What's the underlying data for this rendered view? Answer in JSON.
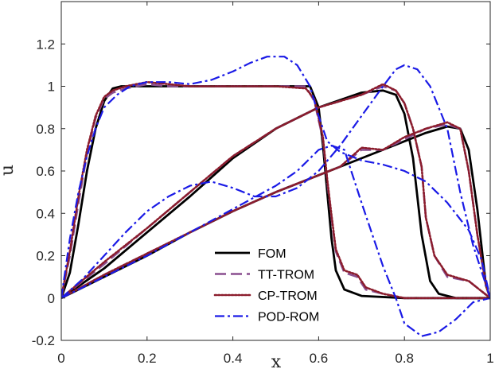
{
  "chart_data": {
    "type": "line",
    "xlabel": "x",
    "ylabel": "u",
    "xlim": [
      0,
      1
    ],
    "ylim": [
      -0.2,
      1.4
    ],
    "xticks": [
      "0",
      "0.2",
      "0.4",
      "0.6",
      "0.8",
      "1"
    ],
    "yticks": [
      "-0.2",
      "0",
      "0.2",
      "0.4",
      "0.6",
      "0.8",
      "1",
      "1.2"
    ],
    "grid": false,
    "legend_position": "bottom-center",
    "legend": [
      "FOM",
      "TT-TROM",
      "CP-TROM",
      "POD-ROM"
    ],
    "series": [
      {
        "name": "FOM",
        "color": "#000000",
        "dash": "solid",
        "curves": [
          [
            [
              0,
              0
            ],
            [
              0.02,
              0.12
            ],
            [
              0.04,
              0.35
            ],
            [
              0.06,
              0.6
            ],
            [
              0.08,
              0.8
            ],
            [
              0.1,
              0.93
            ],
            [
              0.12,
              0.99
            ],
            [
              0.14,
              1.0
            ],
            [
              0.3,
              1.0
            ],
            [
              0.58,
              1.0
            ],
            [
              0.6,
              0.9
            ],
            [
              0.61,
              0.72
            ],
            [
              0.62,
              0.5
            ],
            [
              0.63,
              0.28
            ],
            [
              0.64,
              0.13
            ],
            [
              0.66,
              0.04
            ],
            [
              0.7,
              0.01
            ],
            [
              0.8,
              0.0
            ],
            [
              1.0,
              0.0
            ]
          ],
          [
            [
              0,
              0
            ],
            [
              0.1,
              0.14
            ],
            [
              0.2,
              0.31
            ],
            [
              0.3,
              0.48
            ],
            [
              0.4,
              0.66
            ],
            [
              0.5,
              0.8
            ],
            [
              0.6,
              0.9
            ],
            [
              0.7,
              0.97
            ],
            [
              0.75,
              0.98
            ],
            [
              0.78,
              0.96
            ],
            [
              0.8,
              0.87
            ],
            [
              0.82,
              0.66
            ],
            [
              0.84,
              0.3
            ],
            [
              0.86,
              0.08
            ],
            [
              0.88,
              0.02
            ],
            [
              0.92,
              0.0
            ],
            [
              1.0,
              0.0
            ]
          ],
          [
            [
              0,
              0
            ],
            [
              0.1,
              0.1
            ],
            [
              0.2,
              0.2
            ],
            [
              0.3,
              0.31
            ],
            [
              0.4,
              0.41
            ],
            [
              0.5,
              0.5
            ],
            [
              0.6,
              0.58
            ],
            [
              0.7,
              0.66
            ],
            [
              0.8,
              0.74
            ],
            [
              0.85,
              0.78
            ],
            [
              0.9,
              0.81
            ],
            [
              0.93,
              0.8
            ],
            [
              0.95,
              0.7
            ],
            [
              0.97,
              0.42
            ],
            [
              0.99,
              0.06
            ],
            [
              1.0,
              0.0
            ]
          ]
        ]
      },
      {
        "name": "TT-TROM",
        "color": "#8a4f8f",
        "dash": "dashed",
        "curves": [
          [
            [
              0,
              0
            ],
            [
              0.02,
              0.2
            ],
            [
              0.04,
              0.45
            ],
            [
              0.06,
              0.68
            ],
            [
              0.08,
              0.85
            ],
            [
              0.1,
              0.94
            ],
            [
              0.12,
              0.97
            ],
            [
              0.15,
              0.99
            ],
            [
              0.2,
              1.01
            ],
            [
              0.25,
              1.0
            ],
            [
              0.3,
              1.0
            ],
            [
              0.4,
              1.0
            ],
            [
              0.5,
              1.0
            ],
            [
              0.57,
              1.0
            ],
            [
              0.59,
              0.93
            ],
            [
              0.61,
              0.75
            ],
            [
              0.62,
              0.55
            ],
            [
              0.63,
              0.38
            ],
            [
              0.64,
              0.22
            ],
            [
              0.66,
              0.12
            ],
            [
              0.69,
              0.1
            ],
            [
              0.71,
              0.04
            ],
            [
              0.75,
              0.02
            ],
            [
              0.8,
              0.0
            ],
            [
              1.0,
              0.0
            ]
          ],
          [
            [
              0,
              0
            ],
            [
              0.1,
              0.16
            ],
            [
              0.2,
              0.33
            ],
            [
              0.3,
              0.5
            ],
            [
              0.4,
              0.67
            ],
            [
              0.5,
              0.8
            ],
            [
              0.6,
              0.9
            ],
            [
              0.7,
              0.96
            ],
            [
              0.75,
              1.0
            ],
            [
              0.78,
              0.98
            ],
            [
              0.8,
              0.92
            ],
            [
              0.82,
              0.8
            ],
            [
              0.84,
              0.62
            ],
            [
              0.85,
              0.38
            ],
            [
              0.87,
              0.2
            ],
            [
              0.9,
              0.1
            ],
            [
              0.95,
              0.08
            ],
            [
              1.0,
              0.0
            ]
          ],
          [
            [
              0,
              0
            ],
            [
              0.1,
              0.11
            ],
            [
              0.2,
              0.21
            ],
            [
              0.3,
              0.31
            ],
            [
              0.4,
              0.41
            ],
            [
              0.5,
              0.5
            ],
            [
              0.6,
              0.58
            ],
            [
              0.65,
              0.62
            ],
            [
              0.7,
              0.7
            ],
            [
              0.75,
              0.7
            ],
            [
              0.8,
              0.75
            ],
            [
              0.85,
              0.8
            ],
            [
              0.9,
              0.82
            ],
            [
              0.93,
              0.8
            ],
            [
              0.95,
              0.6
            ],
            [
              0.97,
              0.3
            ],
            [
              0.99,
              0.06
            ],
            [
              1.0,
              0.0
            ]
          ]
        ]
      },
      {
        "name": "CP-TROM",
        "color": "#8b1c2c",
        "dash": "dotted",
        "curves": [
          [
            [
              0,
              0
            ],
            [
              0.02,
              0.22
            ],
            [
              0.04,
              0.48
            ],
            [
              0.06,
              0.7
            ],
            [
              0.08,
              0.86
            ],
            [
              0.1,
              0.95
            ],
            [
              0.12,
              0.98
            ],
            [
              0.15,
              1.0
            ],
            [
              0.2,
              1.02
            ],
            [
              0.25,
              1.01
            ],
            [
              0.3,
              1.0
            ],
            [
              0.4,
              1.0
            ],
            [
              0.5,
              1.0
            ],
            [
              0.57,
              0.99
            ],
            [
              0.59,
              0.94
            ],
            [
              0.61,
              0.76
            ],
            [
              0.62,
              0.56
            ],
            [
              0.63,
              0.39
            ],
            [
              0.64,
              0.23
            ],
            [
              0.66,
              0.13
            ],
            [
              0.69,
              0.11
            ],
            [
              0.71,
              0.05
            ],
            [
              0.75,
              0.02
            ],
            [
              0.8,
              0.0
            ],
            [
              1.0,
              0.0
            ]
          ],
          [
            [
              0,
              0
            ],
            [
              0.1,
              0.17
            ],
            [
              0.2,
              0.33
            ],
            [
              0.3,
              0.5
            ],
            [
              0.4,
              0.67
            ],
            [
              0.5,
              0.8
            ],
            [
              0.6,
              0.9
            ],
            [
              0.7,
              0.96
            ],
            [
              0.75,
              1.01
            ],
            [
              0.78,
              0.98
            ],
            [
              0.8,
              0.92
            ],
            [
              0.82,
              0.8
            ],
            [
              0.84,
              0.62
            ],
            [
              0.85,
              0.38
            ],
            [
              0.87,
              0.2
            ],
            [
              0.9,
              0.11
            ],
            [
              0.95,
              0.08
            ],
            [
              1.0,
              0.0
            ]
          ],
          [
            [
              0,
              0
            ],
            [
              0.1,
              0.11
            ],
            [
              0.2,
              0.21
            ],
            [
              0.3,
              0.31
            ],
            [
              0.4,
              0.41
            ],
            [
              0.5,
              0.5
            ],
            [
              0.6,
              0.58
            ],
            [
              0.65,
              0.62
            ],
            [
              0.7,
              0.71
            ],
            [
              0.75,
              0.7
            ],
            [
              0.8,
              0.76
            ],
            [
              0.85,
              0.8
            ],
            [
              0.9,
              0.83
            ],
            [
              0.93,
              0.8
            ],
            [
              0.95,
              0.6
            ],
            [
              0.97,
              0.3
            ],
            [
              0.99,
              0.06
            ],
            [
              1.0,
              0.0
            ]
          ]
        ]
      },
      {
        "name": "POD-ROM",
        "color": "#1a1ae6",
        "dash": "dashdot",
        "curves": [
          [
            [
              0,
              0
            ],
            [
              0.02,
              0.28
            ],
            [
              0.04,
              0.5
            ],
            [
              0.06,
              0.67
            ],
            [
              0.08,
              0.8
            ],
            [
              0.1,
              0.9
            ],
            [
              0.13,
              0.96
            ],
            [
              0.16,
              1.0
            ],
            [
              0.2,
              1.02
            ],
            [
              0.25,
              1.02
            ],
            [
              0.3,
              1.01
            ],
            [
              0.35,
              1.03
            ],
            [
              0.4,
              1.07
            ],
            [
              0.44,
              1.11
            ],
            [
              0.48,
              1.14
            ],
            [
              0.52,
              1.14
            ],
            [
              0.55,
              1.1
            ],
            [
              0.58,
              1.0
            ],
            [
              0.6,
              0.86
            ],
            [
              0.62,
              0.74
            ],
            [
              0.65,
              0.69
            ],
            [
              0.7,
              0.65
            ],
            [
              0.75,
              0.63
            ],
            [
              0.8,
              0.6
            ],
            [
              0.85,
              0.55
            ],
            [
              0.9,
              0.45
            ],
            [
              0.95,
              0.32
            ],
            [
              0.98,
              0.18
            ],
            [
              1.0,
              0.0
            ]
          ],
          [
            [
              0,
              0
            ],
            [
              0.05,
              0.09
            ],
            [
              0.1,
              0.2
            ],
            [
              0.15,
              0.31
            ],
            [
              0.2,
              0.41
            ],
            [
              0.25,
              0.48
            ],
            [
              0.3,
              0.53
            ],
            [
              0.35,
              0.55
            ],
            [
              0.4,
              0.52
            ],
            [
              0.45,
              0.48
            ],
            [
              0.5,
              0.48
            ],
            [
              0.55,
              0.52
            ],
            [
              0.6,
              0.6
            ],
            [
              0.65,
              0.72
            ],
            [
              0.7,
              0.86
            ],
            [
              0.75,
              1.0
            ],
            [
              0.78,
              1.08
            ],
            [
              0.8,
              1.1
            ],
            [
              0.83,
              1.08
            ],
            [
              0.86,
              1.0
            ],
            [
              0.9,
              0.8
            ],
            [
              0.93,
              0.5
            ],
            [
              0.96,
              0.25
            ],
            [
              1.0,
              0.0
            ]
          ],
          [
            [
              0,
              0
            ],
            [
              0.1,
              0.1
            ],
            [
              0.2,
              0.2
            ],
            [
              0.3,
              0.31
            ],
            [
              0.4,
              0.42
            ],
            [
              0.5,
              0.53
            ],
            [
              0.55,
              0.6
            ],
            [
              0.6,
              0.7
            ],
            [
              0.63,
              0.72
            ],
            [
              0.66,
              0.7
            ],
            [
              0.7,
              0.45
            ],
            [
              0.75,
              0.15
            ],
            [
              0.78,
              0.0
            ],
            [
              0.8,
              -0.12
            ],
            [
              0.84,
              -0.18
            ],
            [
              0.88,
              -0.16
            ],
            [
              0.92,
              -0.1
            ],
            [
              0.96,
              -0.02
            ],
            [
              1.0,
              0.0
            ]
          ]
        ]
      }
    ]
  }
}
